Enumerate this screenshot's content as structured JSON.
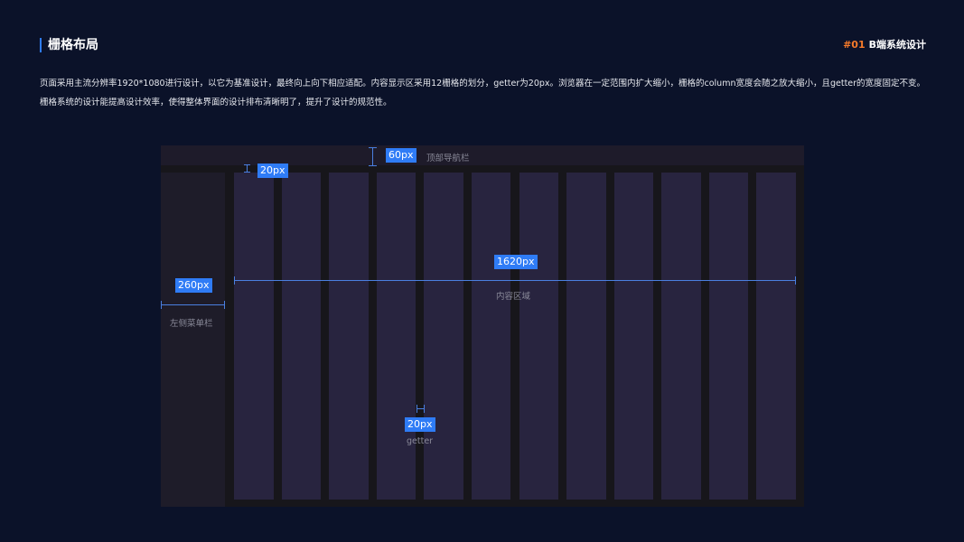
{
  "header": {
    "title": "栅格布局",
    "tag_number": "#01",
    "tag_label": "B端系统设计"
  },
  "description": [
    "页面采用主流分辨率1920*1080进行设计，以它为基准设计，最终向上向下相应适配。内容显示区采用12栅格的划分，getter为20px。浏览器在一定范围内扩大缩小，栅格的column宽度会随之放大缩小，且getter的宽度固定不变。",
    "栅格系统的设计能提高设计效率，使得整体界面的设计排布清晰明了，提升了设计的规范性。"
  ],
  "diagram": {
    "top_nav": {
      "size": "60px",
      "label": "顶部导航栏"
    },
    "top_gap": {
      "size": "20px"
    },
    "sidebar": {
      "size": "260px",
      "label": "左侧菜单栏"
    },
    "content": {
      "size": "1620px",
      "label": "内容区域",
      "columns": 12
    },
    "gutter": {
      "size": "20px",
      "label": "getter"
    }
  },
  "colors": {
    "background": "#0b1229",
    "accent": "#2f7cf6",
    "tag": "#f57a2a",
    "column": "#28243f"
  }
}
